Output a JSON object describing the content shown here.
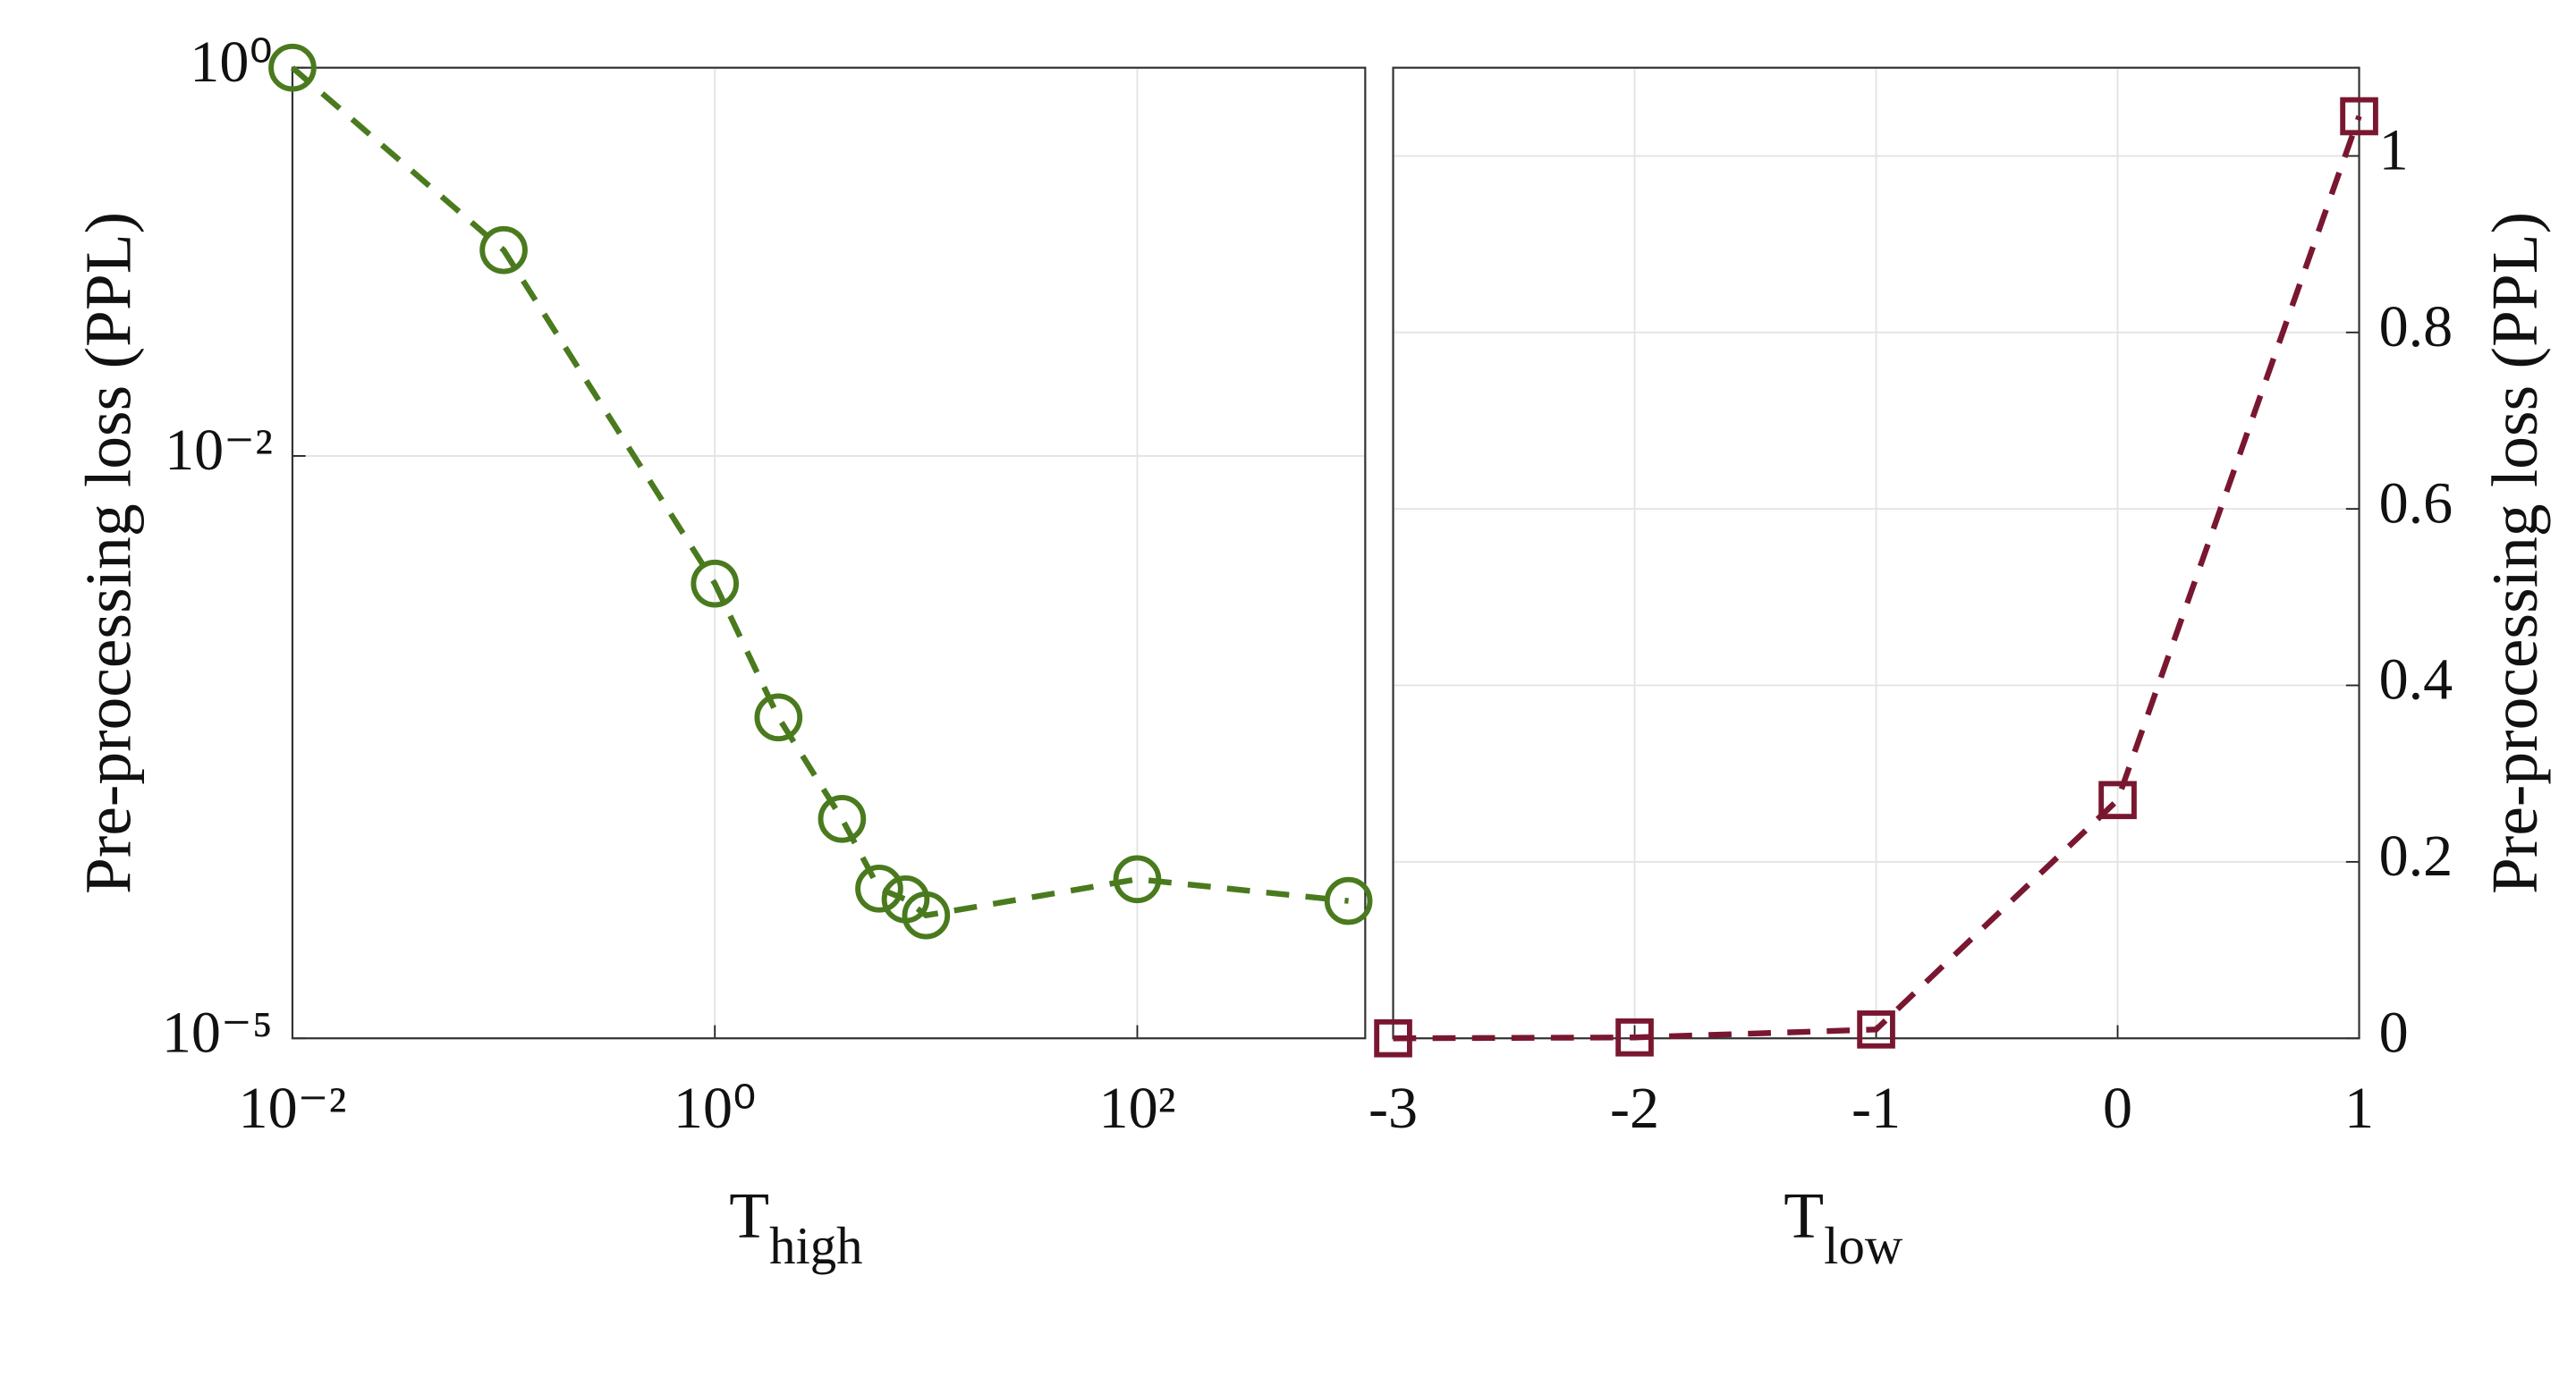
{
  "chart_data": [
    {
      "type": "line",
      "xscale": "log",
      "yscale": "log",
      "grid": true,
      "ylabel": "Pre-processing loss (PPL)",
      "xlabel": "T",
      "xlabel_sub": "high",
      "x": [
        0.01,
        0.1,
        1,
        2,
        4,
        6,
        8,
        10,
        100,
        1000
      ],
      "series": [
        {
          "color": "#4a7a1e",
          "marker": "circle",
          "values": [
            1.0,
            0.115,
            0.0022,
            0.00045,
            0.000135,
            5.9e-05,
            5.2e-05,
            4.3e-05,
            6.6e-05,
            5.1e-05
          ]
        }
      ],
      "xlim": [
        0.01,
        1200
      ],
      "ylim": [
        1e-05,
        1
      ],
      "xticks": [
        {
          "value": 0.01,
          "label": "10⁻²"
        },
        {
          "value": 1,
          "label": "10⁰"
        },
        {
          "value": 100,
          "label": "10²"
        }
      ],
      "yticks": [
        {
          "value": 1e-05,
          "label": "10⁻⁵"
        },
        {
          "value": 0.01,
          "label": "10⁻²"
        },
        {
          "value": 1,
          "label": "10⁰"
        }
      ],
      "y_side": "left"
    },
    {
      "type": "line",
      "xscale": "linear",
      "yscale": "linear",
      "grid": true,
      "ylabel": "Pre-processing loss (PPL)",
      "xlabel": "T",
      "xlabel_sub": "low",
      "x": [
        -3,
        -2,
        -1,
        0,
        1
      ],
      "series": [
        {
          "color": "#7a1730",
          "marker": "square",
          "values": [
            0,
            0.001,
            0.01,
            0.27,
            1.045
          ]
        }
      ],
      "xlim": [
        -3,
        1
      ],
      "ylim": [
        0,
        1.1
      ],
      "xticks": [
        -3,
        -2,
        -1,
        0,
        1
      ],
      "yticks": [
        0,
        0.2,
        0.4,
        0.6,
        0.8,
        1
      ],
      "y_side": "right"
    }
  ]
}
